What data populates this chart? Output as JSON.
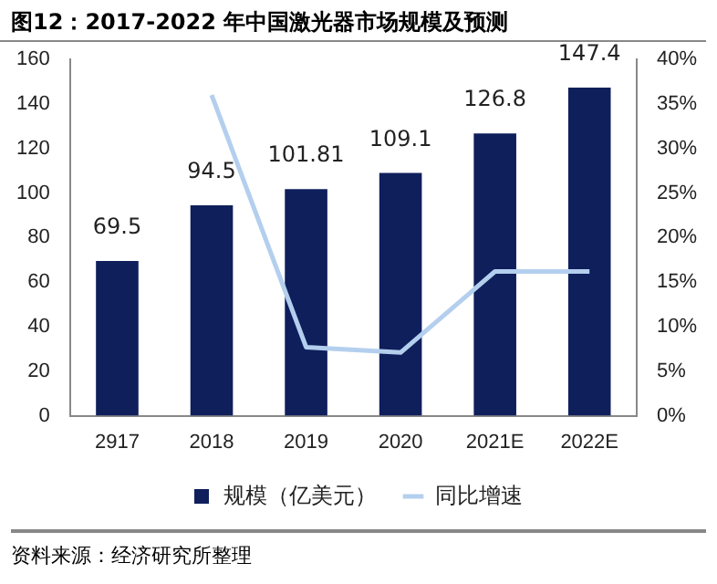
{
  "chart_data": {
    "type": "bar",
    "title": "图12：2017-2022 年中国激光器市场规模及预测",
    "categories": [
      "2917",
      "2018",
      "2019",
      "2020",
      "2021E",
      "2022E"
    ],
    "series": [
      {
        "name": "规模（亿美元）",
        "color": "#0f1f5c",
        "values": [
          69.5,
          94.5,
          101.81,
          109.1,
          126.8,
          147.4
        ],
        "value_labels": [
          "69.5",
          "94.5",
          "101.81",
          "109.1",
          "126.8",
          "147.4"
        ]
      },
      {
        "name": "同比增速",
        "type": "line",
        "axis": "y2",
        "color": "#b4cfee",
        "values": [
          null,
          36,
          7.7,
          7.1,
          16.2,
          16.2
        ]
      }
    ],
    "ylim": [
      0,
      160
    ],
    "yticks": [
      0,
      20,
      40,
      60,
      80,
      100,
      120,
      140,
      160
    ],
    "y2lim": [
      0,
      40
    ],
    "y2ticks": [
      {
        "value": 0,
        "label": "0%"
      },
      {
        "value": 5,
        "label": "5%"
      },
      {
        "value": 10,
        "label": "10%"
      },
      {
        "value": 15,
        "label": "15%"
      },
      {
        "value": 20,
        "label": "20%"
      },
      {
        "value": 25,
        "label": "25%"
      },
      {
        "value": 30,
        "label": "30%"
      },
      {
        "value": 35,
        "label": "35%"
      },
      {
        "value": 40,
        "label": "40%"
      }
    ],
    "grid": false,
    "legend": "bottom",
    "marker": "none",
    "line_style": "solid",
    "annotations": [
      "资料来源：经济研究所整理"
    ]
  }
}
